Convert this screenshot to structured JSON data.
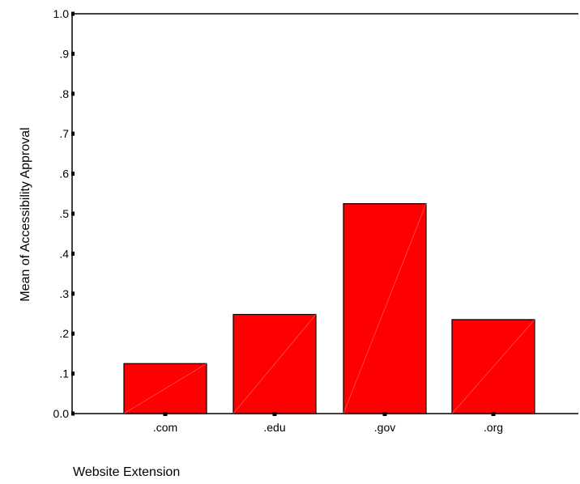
{
  "chart_data": {
    "type": "bar",
    "title": "",
    "xlabel": "Website Extension",
    "ylabel": "Mean of Accessibility Approval",
    "categories": [
      ".com",
      ".edu",
      ".gov",
      ".org"
    ],
    "values": [
      0.125,
      0.248,
      0.525,
      0.235
    ],
    "ylim": [
      0,
      1.0
    ],
    "yticks": [
      0,
      0.1,
      0.2,
      0.3,
      0.4,
      0.5,
      0.6,
      0.7,
      0.8,
      0.9,
      1.0
    ],
    "ytick_labels": [
      "0.0",
      ".1",
      ".2",
      ".3",
      ".4",
      ".5",
      ".6",
      ".7",
      ".8",
      ".9",
      "1.0"
    ],
    "grid": false,
    "legend": "none",
    "colors": {
      "bar_fill": "#ff0000",
      "bar_stroke": "#000000",
      "axis": "#000000"
    }
  }
}
